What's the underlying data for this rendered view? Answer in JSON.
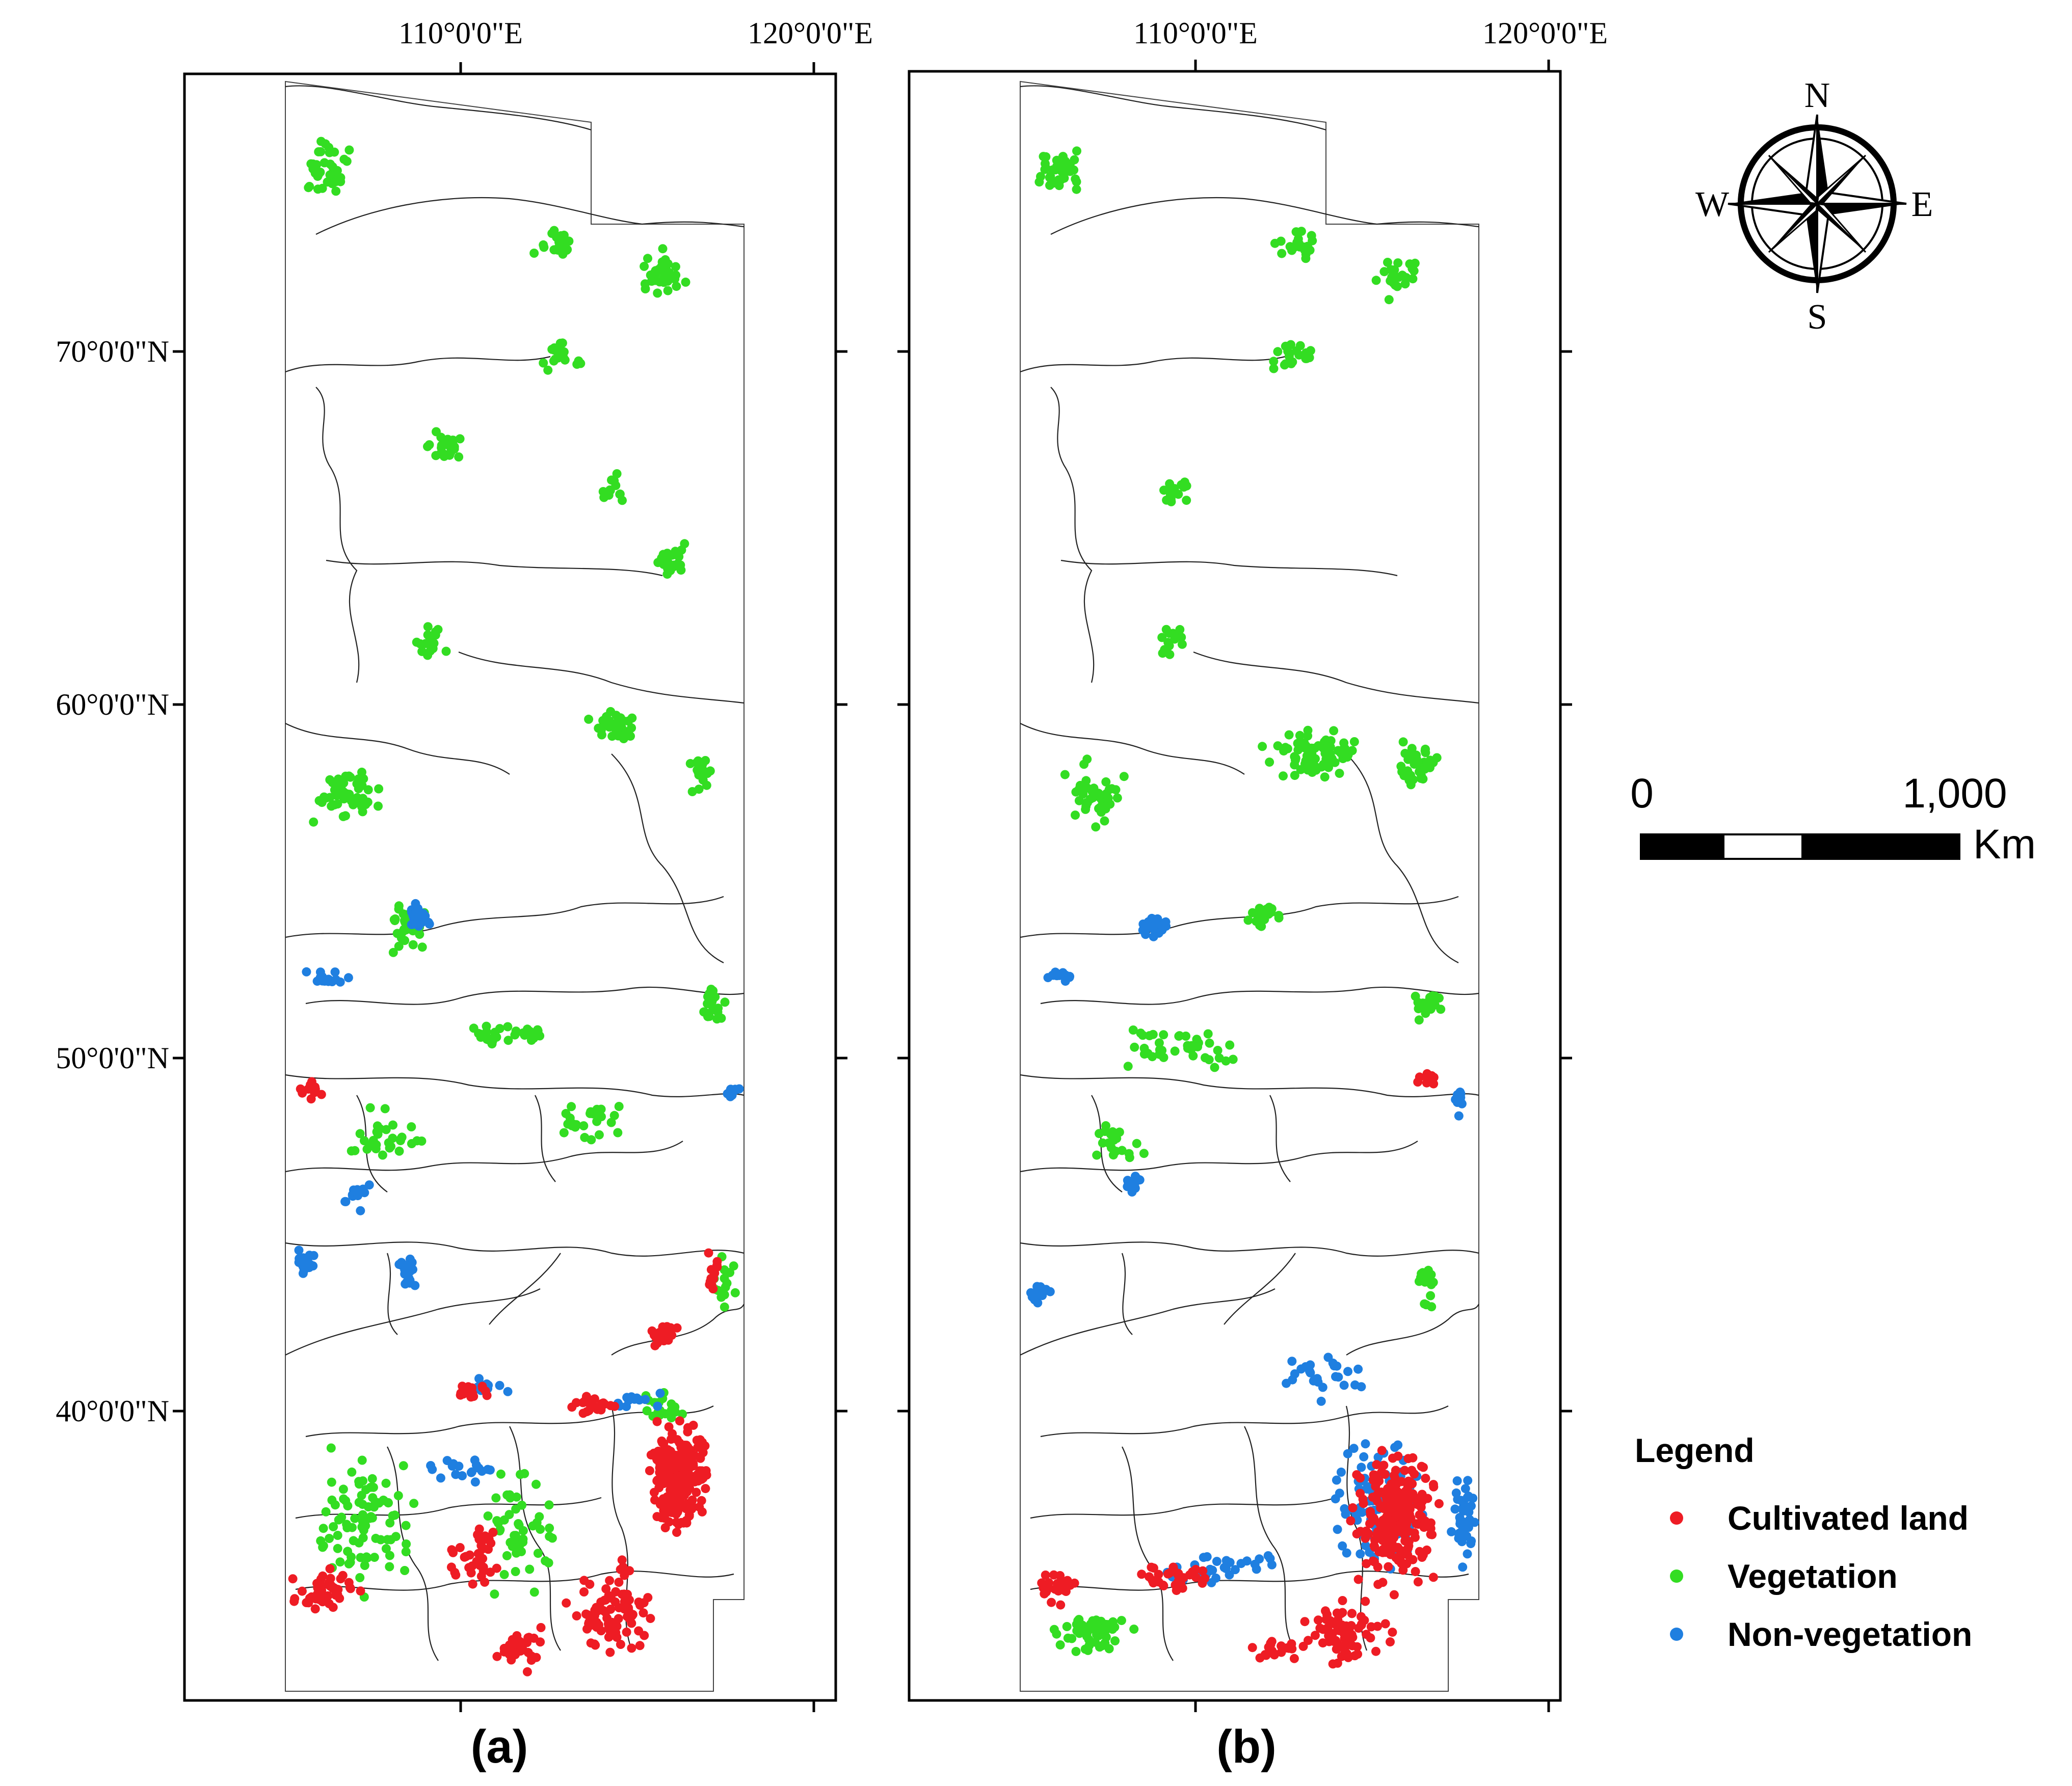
{
  "colors": {
    "cultivated": "#ee1c24",
    "vegetation": "#33dd22",
    "non_vegetation": "#1f7fe0",
    "frame": "#000000",
    "boundary": "#222222"
  },
  "axes": {
    "lon_ticks": [
      {
        "value": 110,
        "label": "110°0'0\"E"
      },
      {
        "value": 120,
        "label": "120°0'0\"E"
      }
    ],
    "lat_ticks": [
      {
        "value": 70,
        "label": "70°0'0\"N"
      },
      {
        "value": 60,
        "label": "60°0'0\"N"
      },
      {
        "value": 50,
        "label": "50°0'0\"N"
      },
      {
        "value": 40,
        "label": "40°0'0\"N"
      }
    ]
  },
  "panels": [
    {
      "id": "a",
      "label": "(a)"
    },
    {
      "id": "b",
      "label": "(b)"
    }
  ],
  "north_arrow": {
    "n": "N",
    "s": "S",
    "e": "E",
    "w": "W"
  },
  "scale_bar": {
    "start_label": "0",
    "end_label": "1,000",
    "unit": "Km"
  },
  "legend": {
    "title": "Legend",
    "items": [
      {
        "key": "cultivated",
        "label": "Cultivated land",
        "icon": "dot-icon"
      },
      {
        "key": "vegetation",
        "label": "Vegetation",
        "icon": "dot-icon"
      },
      {
        "key": "non_vegetation",
        "label": "Non-vegetation",
        "icon": "dot-icon"
      }
    ]
  }
}
